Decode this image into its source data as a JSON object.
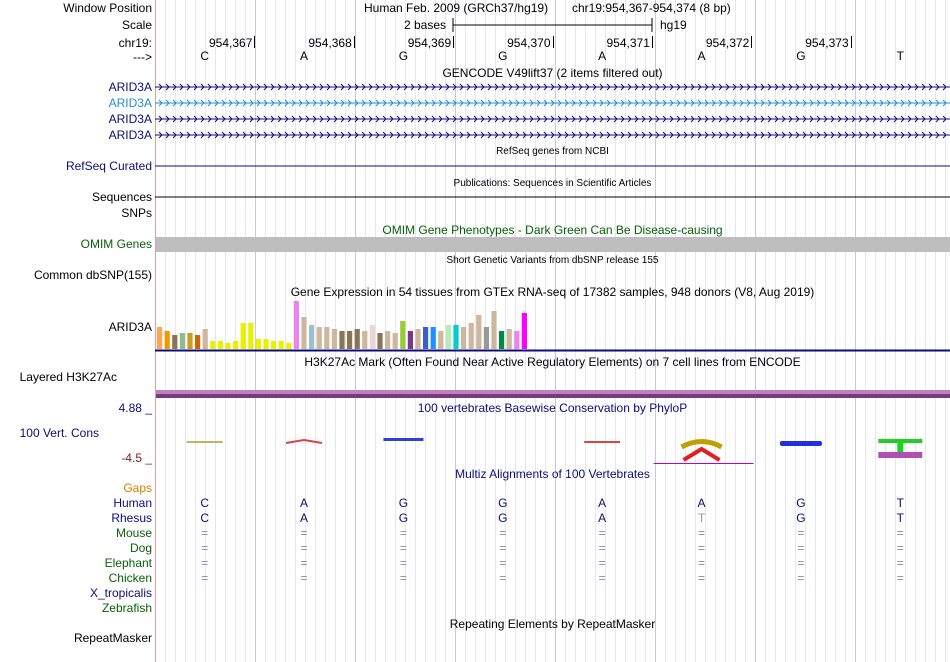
{
  "window_position": {
    "label": "Window Position",
    "assembly": "Human Feb. 2009 (GRCh37/hg19)",
    "position": "chr19:954,367-954,374 (8 bp)"
  },
  "scale": {
    "label": "Scale",
    "bases": "2 bases",
    "db": "hg19"
  },
  "chrom": {
    "label": "chr19:",
    "ticks": [
      "954,367",
      "954,368",
      "954,369",
      "954,370",
      "954,371",
      "954,372",
      "954,373"
    ]
  },
  "strand": {
    "label": "--->",
    "bases": [
      "C",
      "A",
      "G",
      "G",
      "A",
      "A",
      "G",
      "T"
    ]
  },
  "gencode": {
    "title": "GENCODE V49lift37 (2 items filtered out)",
    "genes": [
      {
        "name": "ARID3A",
        "color": "#0c0c78"
      },
      {
        "name": "ARID3A",
        "color": "#1f8fd0"
      },
      {
        "name": "ARID3A",
        "color": "#0c0c78"
      },
      {
        "name": "ARID3A",
        "color": "#0c0c78"
      }
    ]
  },
  "refseq": {
    "title": "RefSeq genes from NCBI",
    "label": "RefSeq Curated"
  },
  "publications": {
    "title": "Publications: Sequences in Scientific Articles",
    "label": "Sequences"
  },
  "snps": {
    "label": "SNPs"
  },
  "omim": {
    "title": "OMIM Gene Phenotypes - Dark Green Can Be Disease-causing",
    "label": "OMIM Genes"
  },
  "dbsnp": {
    "title": "Short Genetic Variants from dbSNP release 155",
    "label": "Common dbSNP(155)"
  },
  "gtex": {
    "title": "Gene Expression in 54 tissues from GTEx RNA-seq of 17382 samples, 948 donors (V8, Aug 2019)",
    "label": "ARID3A",
    "values": [
      22,
      18,
      14,
      16,
      16,
      14,
      20,
      8,
      8,
      6,
      8,
      26,
      26,
      10,
      10,
      8,
      8,
      6,
      48,
      32,
      24,
      22,
      22,
      20,
      18,
      18,
      20,
      18,
      24,
      16,
      18,
      16,
      28,
      18,
      20,
      22,
      22,
      18,
      24,
      24,
      22,
      26,
      34,
      22,
      38,
      18,
      20,
      18,
      36
    ],
    "colors": [
      "#ffa54f",
      "#ee9a00",
      "#8b7355",
      "#8fbc8f",
      "#cd9b1d",
      "#cd6600",
      "#cdb79e",
      "#eeee00",
      "#eeee00",
      "#eeee00",
      "#eeee00",
      "#eeee00",
      "#eeee00",
      "#eeee00",
      "#eeee00",
      "#eeee00",
      "#eeee00",
      "#eeee00",
      "#ee82ee",
      "#cdb79e",
      "#9ac0cd",
      "#cdb79e",
      "#cdb79e",
      "#cdb79e",
      "#8b7355",
      "#8b7355",
      "#8b7355",
      "#cdb79e",
      "#eed5d2",
      "#8b7355",
      "#cdb79e",
      "#cdb79e",
      "#9acd32",
      "#7a378b",
      "#cdb79e",
      "#3a5fcd",
      "#1e90ff",
      "#cdb79e",
      "#b4eeb4",
      "#00cdcd",
      "#cdb79e",
      "#cdb79e",
      "#cdb79e",
      "#999999",
      "#cdb79e",
      "#008b45",
      "#cdb79e",
      "#ee82ee",
      "#ff00ff"
    ]
  },
  "h3k27ac": {
    "title": "H3K27Ac Mark (Often Found Near Active Regulatory Elements) on 7 cell lines from ENCODE",
    "label": "Layered H3K27Ac"
  },
  "phylop": {
    "title": "100 vertebrates Basewise Conservation by PhyloP",
    "label": "100 Vert. Cons",
    "max": "4.88 _",
    "min": "-4.5 _"
  },
  "multiz": {
    "title": "Multiz Alignments of 100 Vertebrates",
    "gaps_label": "Gaps",
    "species": [
      {
        "name": "Human",
        "bases": [
          "C",
          "A",
          "G",
          "G",
          "A",
          "A",
          "G",
          "T"
        ]
      },
      {
        "name": "Rhesus",
        "bases": [
          "C",
          "A",
          "G",
          "G",
          "A",
          "T",
          "G",
          "T"
        ]
      },
      {
        "name": "Mouse",
        "bases": [
          "=",
          "=",
          "=",
          "=",
          "=",
          "=",
          "=",
          "="
        ]
      },
      {
        "name": "Dog",
        "bases": [
          "=",
          "=",
          "=",
          "=",
          "=",
          "=",
          "=",
          "="
        ]
      },
      {
        "name": "Elephant",
        "bases": [
          "=",
          "=",
          "=",
          "=",
          "=",
          "=",
          "=",
          "="
        ]
      },
      {
        "name": "Chicken",
        "bases": [
          "=",
          "=",
          "=",
          "=",
          "=",
          "=",
          "=",
          "="
        ]
      },
      {
        "name": "X_tropicalis",
        "bases": []
      },
      {
        "name": "Zebrafish",
        "bases": []
      }
    ]
  },
  "repeatmasker": {
    "title": "Repeating Elements by RepeatMasker",
    "label": "RepeatMasker"
  }
}
